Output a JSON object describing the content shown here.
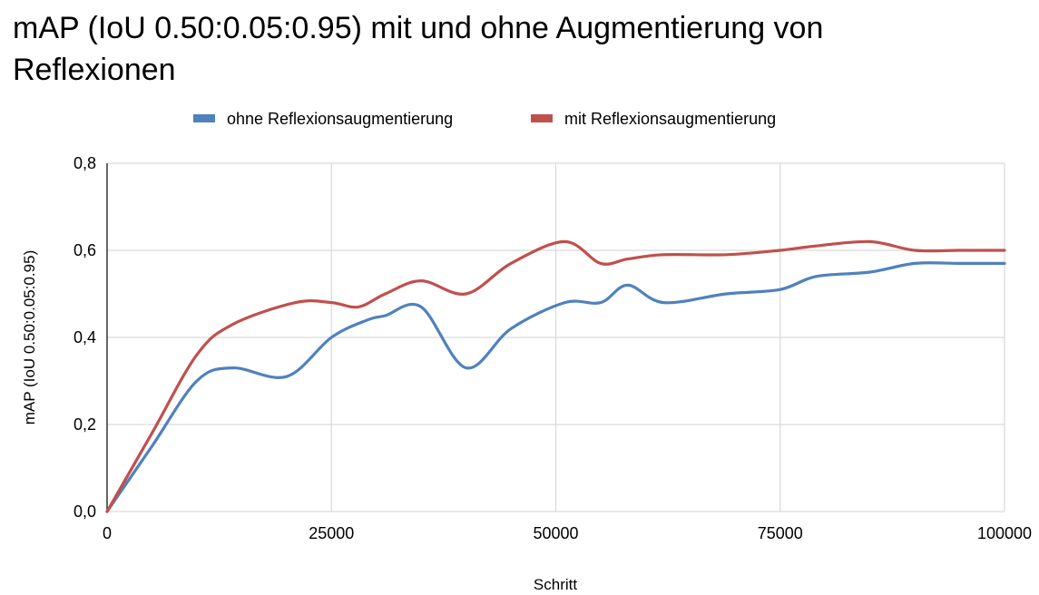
{
  "chart_data": {
    "type": "line",
    "title": "mAP (IoU 0.50:0.05:0.95) mit und ohne Augmentierung von Reflexionen",
    "xlabel": "Schritt",
    "ylabel": "mAP (IoU 0.50:0.05:0.95)",
    "xlim": [
      0,
      100000
    ],
    "ylim": [
      0,
      0.8
    ],
    "xticks": [
      0,
      25000,
      50000,
      75000,
      100000
    ],
    "xtick_labels": [
      "0",
      "25000",
      "50000",
      "75000",
      "100000"
    ],
    "yticks": [
      0,
      0.2,
      0.4,
      0.6,
      0.8
    ],
    "ytick_labels": [
      "0,0",
      "0,2",
      "0,4",
      "0,6",
      "0,8"
    ],
    "grid": true,
    "legend_position": "top",
    "smooth": true,
    "series": [
      {
        "name": "ohne Reflexionsaugmentierung",
        "color": "#4f81bd",
        "x": [
          0,
          5000,
          10000,
          14000,
          20000,
          25000,
          29000,
          31000,
          35000,
          40000,
          45000,
          51000,
          55000,
          58000,
          62000,
          69000,
          75000,
          79000,
          85000,
          90000,
          95000,
          100000
        ],
        "y": [
          0,
          0.15,
          0.3,
          0.33,
          0.31,
          0.4,
          0.44,
          0.45,
          0.47,
          0.33,
          0.42,
          0.48,
          0.48,
          0.52,
          0.48,
          0.5,
          0.51,
          0.54,
          0.55,
          0.57,
          0.57,
          0.57
        ]
      },
      {
        "name": "mit Reflexionsaugmentierung",
        "color": "#c0504d",
        "x": [
          0,
          5000,
          10000,
          14000,
          21000,
          25000,
          28000,
          31000,
          35000,
          40000,
          45000,
          51000,
          55000,
          58000,
          62000,
          69000,
          75000,
          79000,
          85000,
          90000,
          95000,
          100000
        ],
        "y": [
          0,
          0.18,
          0.36,
          0.43,
          0.48,
          0.48,
          0.47,
          0.5,
          0.53,
          0.5,
          0.57,
          0.62,
          0.57,
          0.58,
          0.59,
          0.59,
          0.6,
          0.61,
          0.62,
          0.6,
          0.6,
          0.6
        ]
      }
    ]
  }
}
